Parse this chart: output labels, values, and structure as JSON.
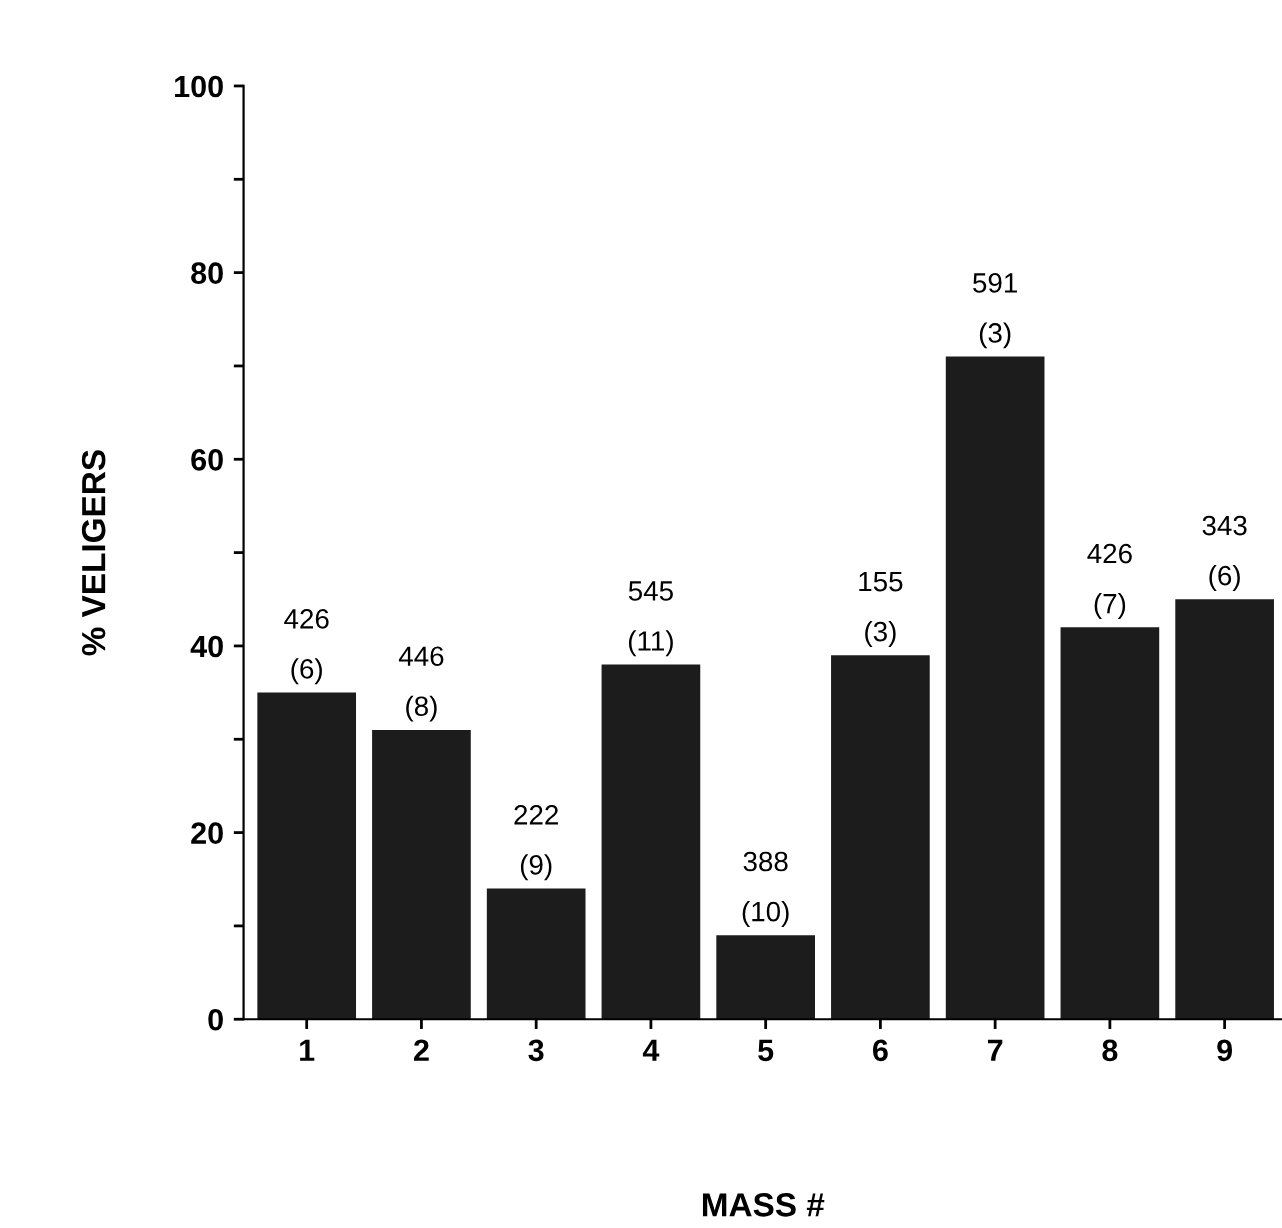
{
  "chart_data": {
    "type": "bar",
    "xlabel": "MASS #",
    "ylabel": "% VELIGERS",
    "categories": [
      "1",
      "2",
      "3",
      "4",
      "5",
      "6",
      "7",
      "8",
      "9"
    ],
    "values": [
      35,
      31,
      14,
      38,
      9,
      39,
      71,
      42,
      45
    ],
    "color": "#1c1c1c",
    "ylim": [
      0,
      100
    ],
    "yticks": [
      0,
      {
        "value": 10,
        "label": null
      },
      20,
      {
        "value": 30,
        "label": null
      },
      40,
      {
        "value": 50,
        "label": null
      },
      60,
      {
        "value": 70,
        "label": null
      },
      80,
      {
        "value": 90,
        "label": null
      },
      100
    ],
    "annotations": [
      {
        "text": "426\n(6)",
        "x": "1",
        "y": 35
      },
      {
        "text": "446\n(8)",
        "x": "2",
        "y": 31
      },
      {
        "text": "222\n(9)",
        "x": "3",
        "y": 14
      },
      {
        "text": "545\n(11)",
        "x": "4",
        "y": 38
      },
      {
        "text": "388\n(10)",
        "x": "5",
        "y": 9
      },
      {
        "text": "155\n(3)",
        "x": "6",
        "y": 39
      },
      {
        "text": "591\n(3)",
        "x": "7",
        "y": 71
      },
      {
        "text": "426\n(7)",
        "x": "8",
        "y": 42
      },
      {
        "text": "343\n(6)",
        "x": "9",
        "y": 45
      }
    ]
  }
}
